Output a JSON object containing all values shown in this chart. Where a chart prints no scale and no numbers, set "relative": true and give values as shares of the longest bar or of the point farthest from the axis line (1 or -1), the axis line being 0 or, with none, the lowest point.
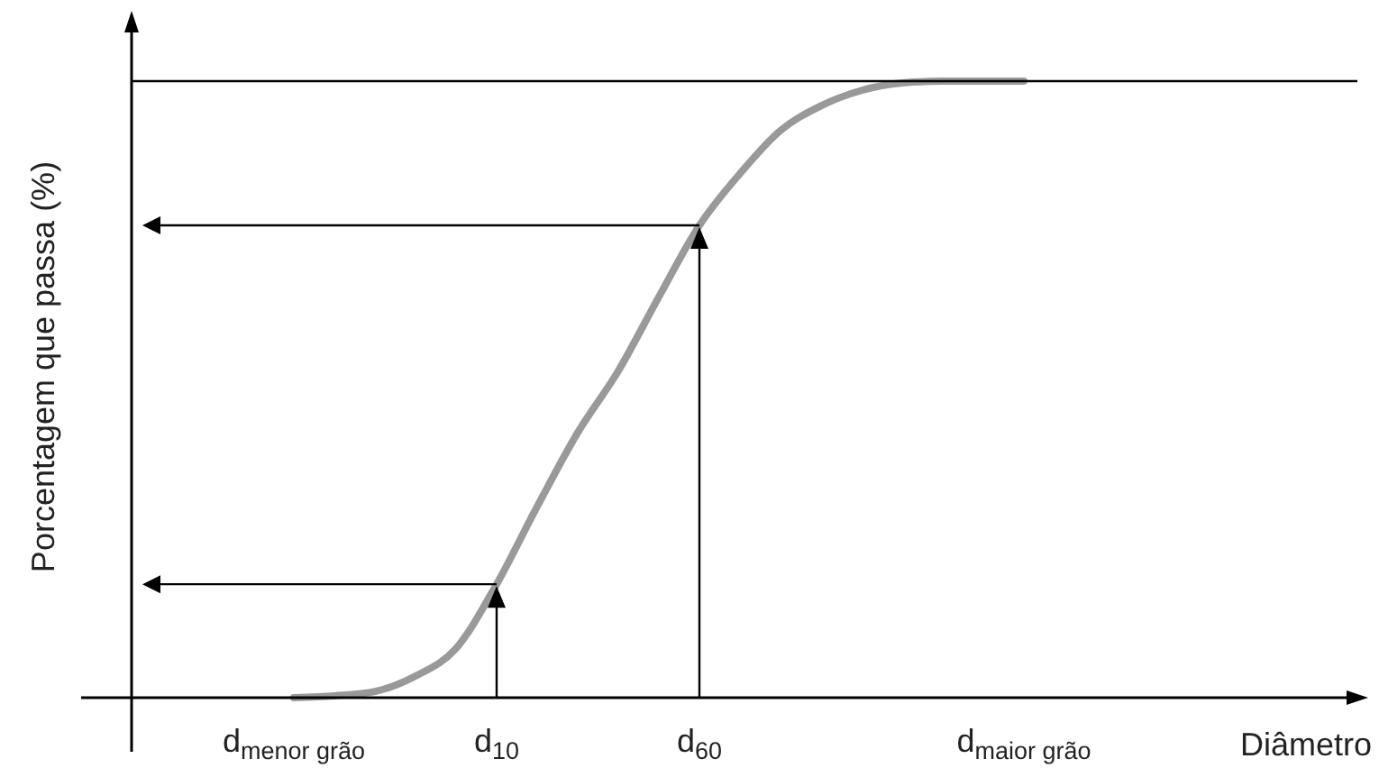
{
  "chart_data": {
    "type": "line",
    "relative": true,
    "ylabel": "Porcentagem que passa (%)",
    "xlabel": "Diâmetro",
    "categories": [
      "d$_{menor grão}$",
      null,
      null,
      null,
      null,
      "d$_{10}$",
      null,
      null,
      null,
      null,
      "d$_{60}$",
      null,
      null,
      null,
      null,
      null,
      null,
      null,
      "d$_{maior grão}$"
    ],
    "series": [
      {
        "color": "#999999",
        "values": [
          0,
          0.003,
          0.01,
          0.035,
          0.08,
          0.184,
          0.31,
          0.43,
          0.53,
          0.65,
          0.766,
          0.85,
          0.92,
          0.96,
          0.985,
          0.997,
          1,
          1,
          1
        ]
      }
    ],
    "ref_lines": [
      {
        "axis": "y",
        "value": 1,
        "color": "#000000"
      }
    ],
    "line_style": "solid"
  }
}
